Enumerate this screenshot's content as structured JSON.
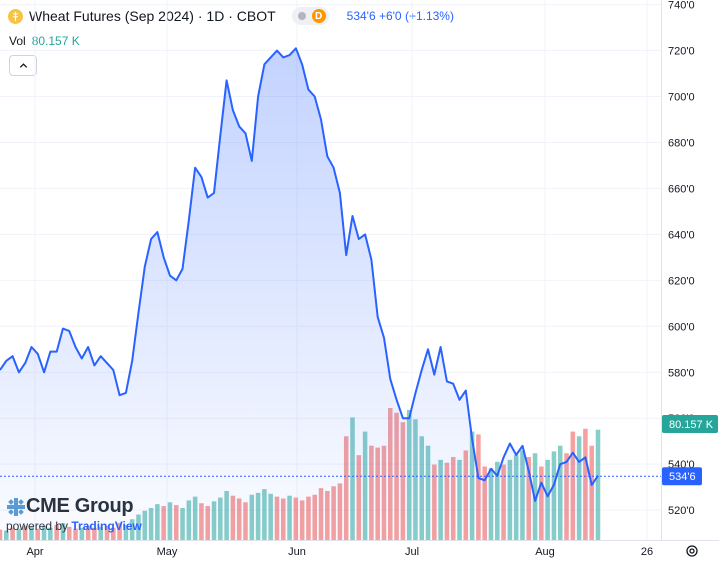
{
  "header": {
    "symbol_title": "Wheat Futures (Sep 2024) · 1D · CBOT",
    "delayed_badge": "D",
    "last_change": "534'6  +6'0 (+1.13%)",
    "vol_label": "Vol",
    "vol_value": "80.157 K"
  },
  "branding": {
    "name": "CME Group",
    "powered_prefix": "powered by ",
    "powered_brand": "TradingView"
  },
  "colors": {
    "line": "#2962ff",
    "volume_up": "#26a69a",
    "volume_down": "#ef5350",
    "price_label": "#2962ff",
    "volume_label": "#26a69a"
  },
  "chart_data": {
    "type": "area",
    "price_axis_labels": [
      "740'0",
      "720'0",
      "700'0",
      "680'0",
      "660'0",
      "640'0",
      "620'0",
      "600'0",
      "580'0",
      "560'0",
      "540'0",
      "520'0"
    ],
    "price_axis_values": [
      740,
      720,
      700,
      680,
      660,
      640,
      620,
      600,
      580,
      560,
      540,
      520
    ],
    "time_axis_labels": [
      "Apr",
      "May",
      "Jun",
      "Jul",
      "Aug",
      "26"
    ],
    "y_range": [
      507,
      742
    ],
    "last_price_label": "534'6",
    "last_price": 534.75,
    "volume_label": "80.157 K",
    "grid": true,
    "values": [
      581,
      585,
      587,
      580,
      584,
      591,
      588,
      580,
      589,
      589,
      599,
      598,
      591,
      586,
      591,
      583,
      587,
      584,
      581,
      570,
      571,
      585,
      606,
      626,
      638,
      641,
      630,
      622,
      620,
      625,
      646,
      669,
      665,
      656,
      658,
      683,
      707,
      694,
      687,
      684,
      672,
      700,
      714,
      717,
      720,
      717,
      718,
      721,
      714,
      703,
      700,
      690,
      674,
      669,
      658,
      631,
      648,
      638,
      640,
      629,
      604,
      595,
      577,
      568,
      560,
      560,
      571,
      581,
      590,
      579,
      591,
      576,
      575,
      568,
      572,
      551,
      534,
      533,
      538,
      535,
      543,
      549,
      544,
      548,
      537,
      524,
      532,
      526,
      531,
      540,
      541,
      545,
      541,
      543,
      531,
      535
    ],
    "volumes": [
      {
        "v": 11,
        "c": "down"
      },
      {
        "v": 10,
        "c": "up"
      },
      {
        "v": 13,
        "c": "down"
      },
      {
        "v": 12,
        "c": "up"
      },
      {
        "v": 15,
        "c": "down"
      },
      {
        "v": 14,
        "c": "up"
      },
      {
        "v": 12,
        "c": "down"
      },
      {
        "v": 15,
        "c": "up"
      },
      {
        "v": 13,
        "c": "up"
      },
      {
        "v": 16,
        "c": "down"
      },
      {
        "v": 18,
        "c": "up"
      },
      {
        "v": 14,
        "c": "down"
      },
      {
        "v": 12,
        "c": "down"
      },
      {
        "v": 13,
        "c": "up"
      },
      {
        "v": 15,
        "c": "down"
      },
      {
        "v": 13,
        "c": "down"
      },
      {
        "v": 14,
        "c": "up"
      },
      {
        "v": 15,
        "c": "down"
      },
      {
        "v": 13,
        "c": "down"
      },
      {
        "v": 18,
        "c": "down"
      },
      {
        "v": 16,
        "c": "up"
      },
      {
        "v": 22,
        "c": "up"
      },
      {
        "v": 27,
        "c": "up"
      },
      {
        "v": 31,
        "c": "up"
      },
      {
        "v": 34,
        "c": "up"
      },
      {
        "v": 38,
        "c": "up"
      },
      {
        "v": 36,
        "c": "down"
      },
      {
        "v": 40,
        "c": "up"
      },
      {
        "v": 37,
        "c": "down"
      },
      {
        "v": 34,
        "c": "up"
      },
      {
        "v": 42,
        "c": "up"
      },
      {
        "v": 46,
        "c": "up"
      },
      {
        "v": 39,
        "c": "down"
      },
      {
        "v": 36,
        "c": "down"
      },
      {
        "v": 41,
        "c": "up"
      },
      {
        "v": 45,
        "c": "up"
      },
      {
        "v": 52,
        "c": "up"
      },
      {
        "v": 47,
        "c": "down"
      },
      {
        "v": 44,
        "c": "down"
      },
      {
        "v": 40,
        "c": "down"
      },
      {
        "v": 48,
        "c": "up"
      },
      {
        "v": 50,
        "c": "up"
      },
      {
        "v": 54,
        "c": "up"
      },
      {
        "v": 49,
        "c": "up"
      },
      {
        "v": 46,
        "c": "down"
      },
      {
        "v": 44,
        "c": "down"
      },
      {
        "v": 47,
        "c": "up"
      },
      {
        "v": 45,
        "c": "down"
      },
      {
        "v": 42,
        "c": "down"
      },
      {
        "v": 46,
        "c": "down"
      },
      {
        "v": 48,
        "c": "down"
      },
      {
        "v": 55,
        "c": "down"
      },
      {
        "v": 52,
        "c": "down"
      },
      {
        "v": 57,
        "c": "down"
      },
      {
        "v": 60,
        "c": "down"
      },
      {
        "v": 110,
        "c": "down"
      },
      {
        "v": 130,
        "c": "up"
      },
      {
        "v": 90,
        "c": "down"
      },
      {
        "v": 115,
        "c": "up"
      },
      {
        "v": 100,
        "c": "down"
      },
      {
        "v": 98,
        "c": "down"
      },
      {
        "v": 100,
        "c": "down"
      },
      {
        "v": 140,
        "c": "down"
      },
      {
        "v": 135,
        "c": "down"
      },
      {
        "v": 125,
        "c": "down"
      },
      {
        "v": 138,
        "c": "up"
      },
      {
        "v": 128,
        "c": "up"
      },
      {
        "v": 110,
        "c": "up"
      },
      {
        "v": 100,
        "c": "up"
      },
      {
        "v": 80,
        "c": "down"
      },
      {
        "v": 85,
        "c": "up"
      },
      {
        "v": 82,
        "c": "down"
      },
      {
        "v": 88,
        "c": "down"
      },
      {
        "v": 85,
        "c": "up"
      },
      {
        "v": 95,
        "c": "down"
      },
      {
        "v": 115,
        "c": "up"
      },
      {
        "v": 112,
        "c": "down"
      },
      {
        "v": 78,
        "c": "down"
      },
      {
        "v": 76,
        "c": "up"
      },
      {
        "v": 83,
        "c": "up"
      },
      {
        "v": 80,
        "c": "down"
      },
      {
        "v": 85,
        "c": "up"
      },
      {
        "v": 90,
        "c": "up"
      },
      {
        "v": 95,
        "c": "up"
      },
      {
        "v": 88,
        "c": "down"
      },
      {
        "v": 92,
        "c": "up"
      },
      {
        "v": 78,
        "c": "down"
      },
      {
        "v": 85,
        "c": "up"
      },
      {
        "v": 94,
        "c": "up"
      },
      {
        "v": 100,
        "c": "up"
      },
      {
        "v": 92,
        "c": "down"
      },
      {
        "v": 115,
        "c": "down"
      },
      {
        "v": 110,
        "c": "up"
      },
      {
        "v": 118,
        "c": "down"
      },
      {
        "v": 100,
        "c": "down"
      },
      {
        "v": 117,
        "c": "up"
      }
    ]
  }
}
